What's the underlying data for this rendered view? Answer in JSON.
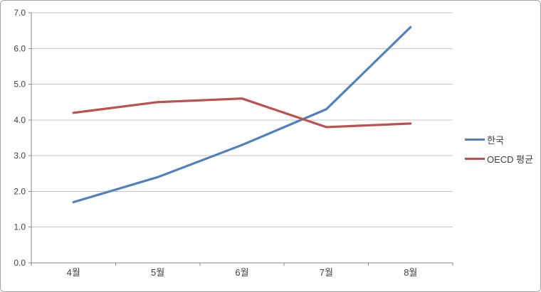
{
  "chart_data": {
    "type": "line",
    "title": "",
    "xlabel": "",
    "ylabel": "",
    "categories": [
      "4월",
      "5월",
      "6월",
      "7월",
      "8월"
    ],
    "series": [
      {
        "name": "한국",
        "color": "#4F81BD",
        "values": [
          1.7,
          2.4,
          3.3,
          4.3,
          6.6
        ]
      },
      {
        "name": "OECD 평균",
        "color": "#C0504D",
        "values": [
          4.2,
          4.5,
          4.6,
          3.8,
          3.9
        ]
      }
    ],
    "ylim": [
      0,
      7
    ],
    "y_tick_step": 1,
    "y_tick_labels": [
      "0.0",
      "1.0",
      "2.0",
      "3.0",
      "4.0",
      "5.0",
      "6.0",
      "7.0"
    ],
    "grid": "horizontal",
    "legend_position": "right"
  },
  "style_colors": {
    "gridline": "#c6c6c6",
    "axis": "#868686",
    "tick_text": "#404040",
    "frame_border": "#a3a3a3",
    "background": "#ffffff"
  }
}
